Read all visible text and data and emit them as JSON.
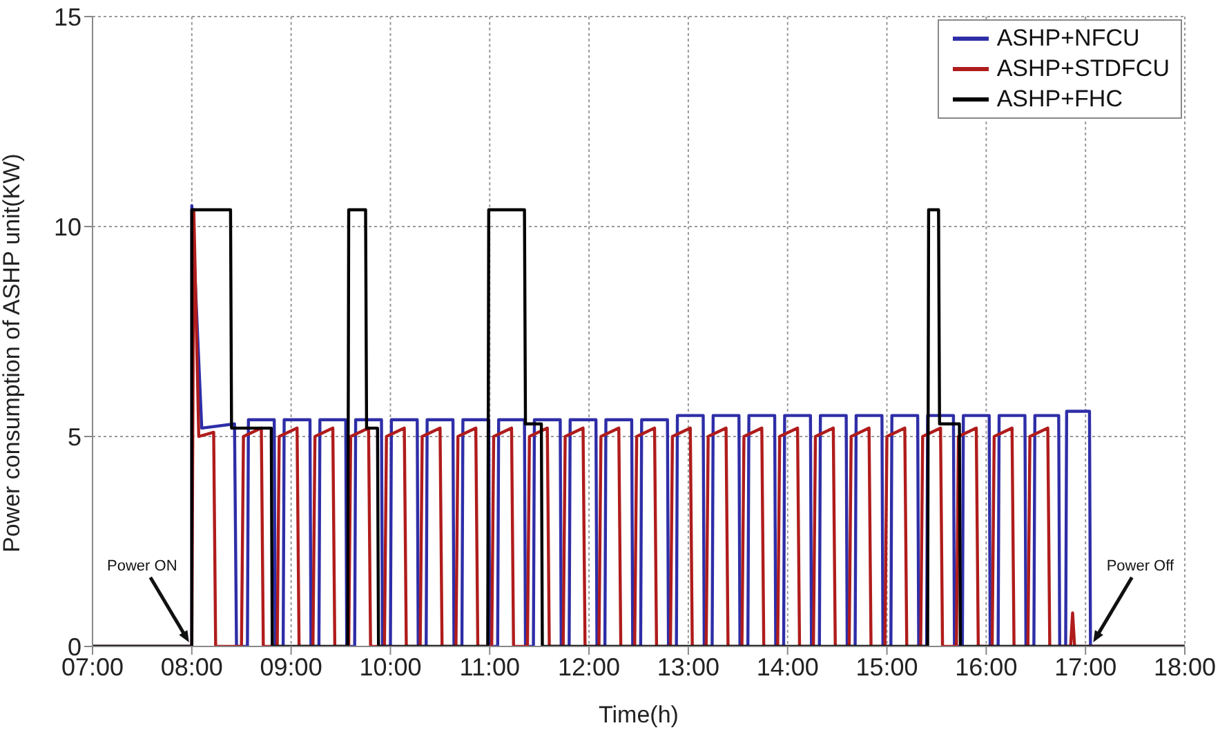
{
  "chart_data": {
    "type": "line",
    "xlabel": "Time(h)",
    "ylabel": "Power consumption of ASHP unit(KW)",
    "xlim": [
      7,
      18
    ],
    "xticks": [
      {
        "value": 7,
        "label": "07:00"
      },
      {
        "value": 8,
        "label": "08:00"
      },
      {
        "value": 9,
        "label": "09:00"
      },
      {
        "value": 10,
        "label": "10:00"
      },
      {
        "value": 11,
        "label": "11:00"
      },
      {
        "value": 12,
        "label": "12:00"
      },
      {
        "value": 13,
        "label": "13:00"
      },
      {
        "value": 14,
        "label": "14:00"
      },
      {
        "value": 15,
        "label": "15:00"
      },
      {
        "value": 16,
        "label": "16:00"
      },
      {
        "value": 17,
        "label": "17:00"
      },
      {
        "value": 18,
        "label": "18:00"
      }
    ],
    "ylim": [
      0,
      15
    ],
    "yticks": [
      0,
      5,
      10,
      15
    ],
    "grid": true,
    "legend": "top right",
    "marker": "none",
    "line_style": "solid",
    "annotations": [
      {
        "text": "Power ON",
        "x": 8,
        "y": 0
      },
      {
        "text": "Power Off",
        "x": 17.05,
        "y": 0
      }
    ],
    "series": [
      {
        "name": "ASHP+NFCU",
        "color": "#2e2ea8",
        "x": [
          7,
          8.0,
          8.0,
          8.1,
          8.43,
          8.45,
          8.56,
          8.57,
          8.83,
          8.84,
          8.92,
          8.93,
          9.19,
          9.2,
          9.28,
          9.29,
          9.55,
          9.56,
          9.64,
          9.65,
          9.91,
          9.92,
          10.0,
          10.01,
          10.27,
          10.28,
          10.36,
          10.37,
          10.63,
          10.64,
          10.72,
          10.73,
          10.99,
          11.0,
          11.08,
          11.09,
          11.35,
          11.36,
          11.44,
          11.45,
          11.71,
          11.72,
          11.8,
          11.81,
          12.07,
          12.08,
          12.16,
          12.17,
          12.43,
          12.44,
          12.52,
          12.53,
          12.79,
          12.8,
          12.88,
          12.89,
          13.15,
          13.16,
          13.24,
          13.25,
          13.51,
          13.52,
          13.6,
          13.61,
          13.87,
          13.88,
          13.96,
          13.97,
          14.23,
          14.24,
          14.32,
          14.33,
          14.59,
          14.6,
          14.68,
          14.69,
          14.95,
          14.96,
          15.04,
          15.05,
          15.31,
          15.32,
          15.4,
          15.41,
          15.67,
          15.68,
          15.76,
          15.77,
          16.03,
          16.04,
          16.12,
          16.13,
          16.39,
          16.4,
          16.48,
          16.49,
          16.73,
          16.74,
          16.8,
          16.81,
          17.04,
          17.05,
          18
        ],
        "values": [
          0,
          0,
          10.5,
          5.2,
          5.3,
          0,
          0,
          5.4,
          5.4,
          0,
          0,
          5.4,
          5.4,
          0,
          0,
          5.4,
          5.4,
          0,
          0,
          5.4,
          5.4,
          0,
          0,
          5.4,
          5.4,
          0,
          0,
          5.4,
          5.4,
          0,
          0,
          5.4,
          5.4,
          0,
          0,
          5.4,
          5.4,
          0,
          0,
          5.4,
          5.4,
          0,
          0,
          5.4,
          5.4,
          0,
          0,
          5.4,
          5.4,
          0,
          0,
          5.4,
          5.4,
          0,
          0,
          5.5,
          5.5,
          0,
          0,
          5.5,
          5.5,
          0,
          0,
          5.5,
          5.5,
          0,
          0,
          5.5,
          5.5,
          0,
          0,
          5.5,
          5.5,
          0,
          0,
          5.5,
          5.5,
          0,
          0,
          5.5,
          5.5,
          0,
          0,
          5.5,
          5.5,
          0,
          0,
          5.5,
          5.5,
          0,
          0,
          5.5,
          5.5,
          0,
          0,
          5.5,
          5.5,
          0,
          0,
          5.6,
          5.6,
          0,
          0
        ]
      },
      {
        "name": "ASHP+STDFCU",
        "color": "#b01c1c",
        "x": [
          7,
          8.0,
          8.02,
          8.07,
          8.22,
          8.24,
          8.5,
          8.52,
          8.7,
          8.72,
          8.86,
          8.88,
          9.06,
          9.08,
          9.22,
          9.24,
          9.42,
          9.44,
          9.58,
          9.6,
          9.78,
          9.8,
          9.94,
          9.96,
          10.14,
          10.16,
          10.3,
          10.32,
          10.5,
          10.52,
          10.66,
          10.68,
          10.86,
          10.88,
          11.02,
          11.04,
          11.22,
          11.24,
          11.38,
          11.4,
          11.58,
          11.6,
          11.74,
          11.76,
          11.94,
          11.96,
          12.1,
          12.12,
          12.3,
          12.32,
          12.46,
          12.48,
          12.66,
          12.68,
          12.82,
          12.84,
          13.02,
          13.04,
          13.18,
          13.2,
          13.38,
          13.4,
          13.54,
          13.56,
          13.74,
          13.76,
          13.9,
          13.92,
          14.1,
          14.12,
          14.26,
          14.28,
          14.46,
          14.48,
          14.62,
          14.64,
          14.82,
          14.84,
          14.98,
          15.0,
          15.18,
          15.2,
          15.34,
          15.36,
          15.54,
          15.56,
          15.7,
          15.72,
          15.9,
          15.92,
          16.06,
          16.08,
          16.26,
          16.28,
          16.42,
          16.44,
          16.62,
          16.64,
          16.85,
          16.87,
          16.89,
          18
        ],
        "values": [
          0,
          0,
          10.4,
          5.0,
          5.1,
          0,
          0,
          5.0,
          5.2,
          0,
          0,
          5.0,
          5.2,
          0,
          0,
          5.0,
          5.2,
          0,
          0,
          5.0,
          5.2,
          0,
          0,
          5.0,
          5.2,
          0,
          0,
          5.0,
          5.2,
          0,
          0,
          5.0,
          5.2,
          0,
          0,
          5.0,
          5.2,
          0,
          0,
          5.0,
          5.2,
          0,
          0,
          5.0,
          5.2,
          0,
          0,
          5.0,
          5.2,
          0,
          0,
          5.0,
          5.2,
          0,
          0,
          5.0,
          5.2,
          0,
          0,
          5.0,
          5.2,
          0,
          0,
          5.0,
          5.2,
          0,
          0,
          5.0,
          5.2,
          0,
          0,
          5.0,
          5.2,
          0,
          0,
          5.0,
          5.2,
          0,
          0,
          5.0,
          5.2,
          0,
          0,
          5.0,
          5.2,
          0,
          0,
          5.0,
          5.2,
          0,
          0,
          5.0,
          5.2,
          0,
          0,
          5.0,
          5.2,
          0,
          0,
          0.8,
          0,
          0
        ]
      },
      {
        "name": "ASHP+FHC",
        "color": "#000000",
        "x": [
          7,
          8.0,
          8.0,
          8.39,
          8.4,
          8.8,
          8.81,
          9.57,
          9.58,
          9.75,
          9.76,
          9.87,
          9.88,
          10.98,
          10.99,
          11.35,
          11.36,
          11.52,
          11.53,
          15.41,
          15.42,
          15.52,
          15.53,
          15.73,
          15.74,
          18
        ],
        "values": [
          0,
          0,
          10.4,
          10.4,
          5.2,
          5.2,
          0,
          0,
          10.4,
          10.4,
          5.2,
          5.2,
          0,
          0,
          10.4,
          10.4,
          5.3,
          5.3,
          0,
          0,
          10.4,
          10.4,
          5.3,
          5.3,
          0,
          0
        ]
      }
    ]
  }
}
